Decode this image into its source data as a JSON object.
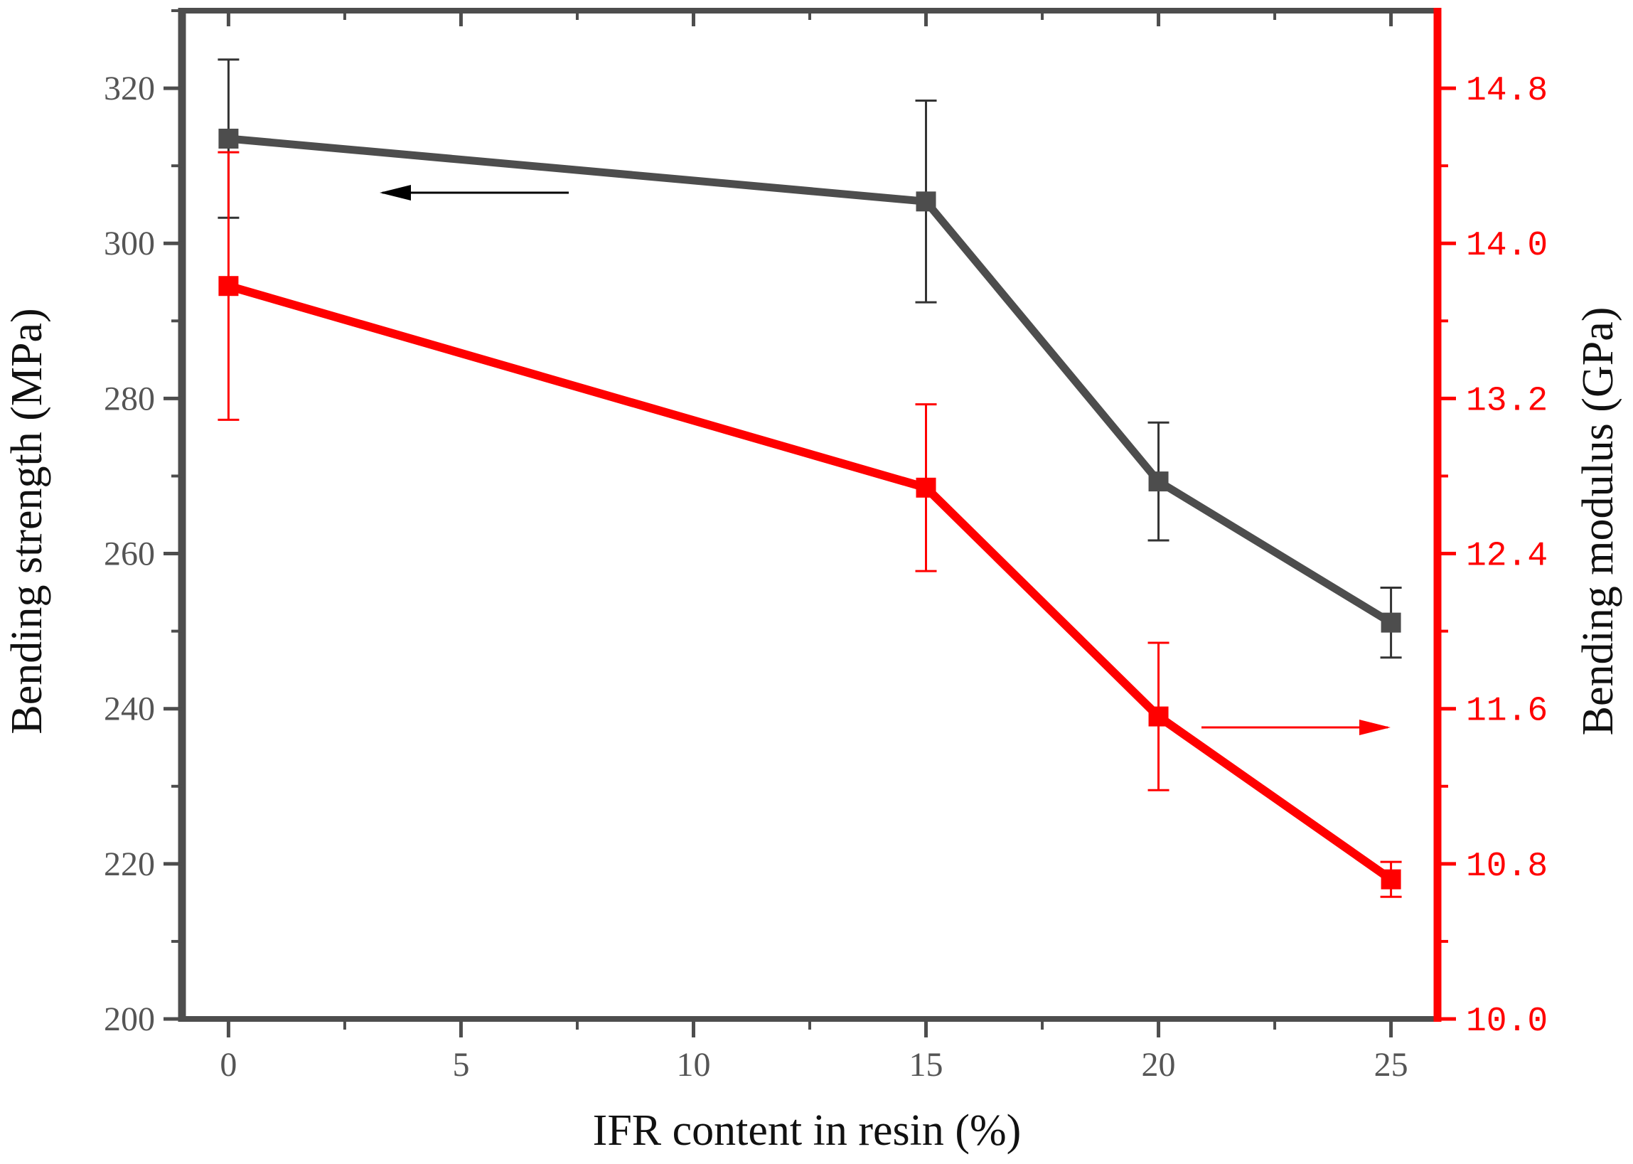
{
  "chart_data": {
    "type": "line",
    "x": [
      0,
      15,
      20,
      25
    ],
    "xlabel": "IFR content in resin (%)",
    "xlim": [
      -1,
      26
    ],
    "xticks": [
      "0",
      "5",
      "10",
      "15",
      "20",
      "25"
    ],
    "series": [
      {
        "axis": "left",
        "color": "#4d4d4d",
        "values": [
          313.5,
          305.4,
          269.3,
          251.1
        ],
        "errors": [
          10.2,
          13.0,
          7.6,
          4.5
        ]
      },
      {
        "axis": "right",
        "color": "#ff0000",
        "values": [
          13.78,
          12.74,
          11.56,
          10.72
        ],
        "errors": [
          0.69,
          0.43,
          0.38,
          0.09
        ]
      }
    ],
    "y_left": {
      "label": "Bending strength (MPa)",
      "lim": [
        200,
        330
      ],
      "ticks": [
        "200",
        "220",
        "240",
        "260",
        "280",
        "300",
        "320"
      ],
      "color": "#555555"
    },
    "y_right": {
      "label": "Bending modulus (GPa)",
      "lim": [
        10.0,
        15.2
      ],
      "ticks": [
        "10.0",
        "10.8",
        "11.6",
        "12.4",
        "13.2",
        "14.0",
        "14.8"
      ],
      "color": "#ff0000"
    },
    "annotations": [
      {
        "type": "arrow",
        "direction": "left",
        "points_to": "left axis",
        "color": "#000000"
      },
      {
        "type": "arrow",
        "direction": "right",
        "points_to": "right axis",
        "color": "#ff0000"
      }
    ],
    "grid": false,
    "legend": "none"
  }
}
